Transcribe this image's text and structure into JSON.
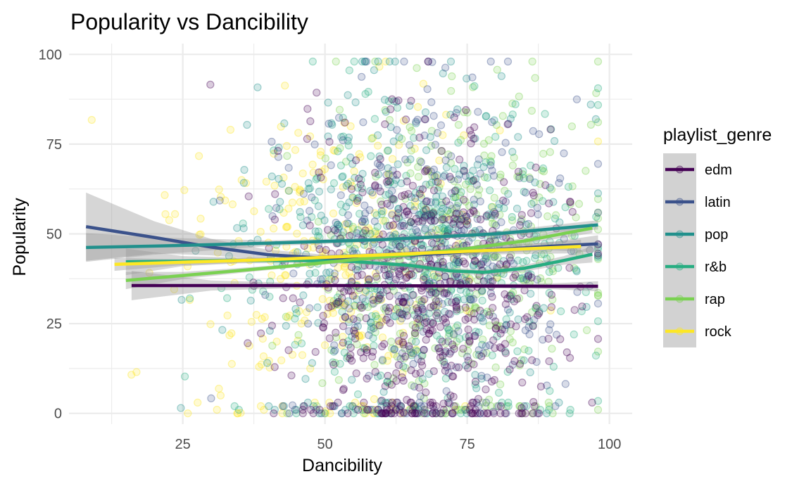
{
  "chart_data": {
    "type": "scatter",
    "title": "Popularity vs Dancibility",
    "xlabel": "Dancibility",
    "ylabel": "Popularity",
    "xlim": [
      5,
      104
    ],
    "ylim": [
      -3,
      103
    ],
    "x_ticks": [
      25,
      50,
      75,
      100
    ],
    "y_ticks": [
      0,
      25,
      50,
      75,
      100
    ],
    "grid": true,
    "legend": {
      "title": "playlist_genre",
      "placement": "right"
    },
    "series": [
      {
        "name": "edm",
        "color": "#440154",
        "trend": {
          "x": [
            16,
            30,
            50,
            70,
            90,
            98
          ],
          "y": [
            35.6,
            35.6,
            35.6,
            35.5,
            35.4,
            35.4
          ],
          "lower": [
            31.5,
            34.2,
            35.1,
            35.0,
            34.6,
            34.0
          ],
          "upper": [
            39.7,
            37.0,
            36.1,
            36.0,
            36.2,
            36.8
          ]
        }
      },
      {
        "name": "latin",
        "color": "#3B528B",
        "trend": {
          "x": [
            8,
            20,
            30,
            40,
            50,
            60,
            70,
            80,
            90,
            98
          ],
          "y": [
            52.0,
            49.0,
            46.3,
            44.2,
            43.2,
            43.6,
            44.5,
            45.6,
            46.6,
            47.2
          ],
          "lower": [
            42.5,
            44.5,
            44.0,
            42.8,
            42.2,
            42.6,
            43.5,
            44.6,
            45.4,
            44.8
          ],
          "upper": [
            61.5,
            53.5,
            48.6,
            45.6,
            44.2,
            44.6,
            45.5,
            46.6,
            47.8,
            49.6
          ]
        }
      },
      {
        "name": "pop",
        "color": "#21908C",
        "trend": {
          "x": [
            8,
            20,
            40,
            60,
            80,
            98
          ],
          "y": [
            46.2,
            46.6,
            47.4,
            48.4,
            50.0,
            52.5
          ],
          "lower": [
            42.2,
            44.2,
            46.6,
            47.8,
            49.3,
            51.2
          ],
          "upper": [
            50.2,
            49.0,
            48.2,
            49.0,
            50.7,
            53.8
          ]
        }
      },
      {
        "name": "r&b",
        "color": "#27AD81",
        "trend": {
          "x": [
            15,
            25,
            35,
            45,
            55,
            65,
            72,
            78,
            85,
            92,
            97
          ],
          "y": [
            42.2,
            42.4,
            42.6,
            42.6,
            42.3,
            41.2,
            39.7,
            39.3,
            40.4,
            42.6,
            44.3
          ],
          "lower": [
            38.5,
            41.0,
            41.8,
            41.9,
            41.6,
            40.5,
            38.9,
            38.5,
            39.5,
            41.4,
            42.0
          ],
          "upper": [
            45.9,
            43.8,
            43.4,
            43.3,
            43.0,
            41.9,
            40.5,
            40.1,
            41.3,
            43.8,
            46.6
          ]
        }
      },
      {
        "name": "rap",
        "color": "#7AD151",
        "trend": {
          "x": [
            15,
            25,
            35,
            45,
            55,
            65,
            75,
            85,
            97
          ],
          "y": [
            37.0,
            38.4,
            39.8,
            41.2,
            42.8,
            44.2,
            45.9,
            48.0,
            51.6
          ],
          "lower": [
            34.6,
            37.4,
            39.1,
            40.7,
            42.3,
            43.7,
            45.3,
            47.2,
            50.2
          ],
          "upper": [
            39.4,
            39.4,
            40.5,
            41.7,
            43.3,
            44.7,
            46.5,
            48.8,
            53.0
          ]
        }
      },
      {
        "name": "rock",
        "color": "#FDE725",
        "trend": {
          "x": [
            13,
            25,
            40,
            55,
            70,
            85,
            95
          ],
          "y": [
            41.5,
            42.1,
            42.8,
            43.8,
            44.8,
            45.8,
            46.5
          ],
          "lower": [
            39.7,
            41.3,
            42.2,
            43.2,
            44.0,
            44.4,
            44.6
          ],
          "upper": [
            43.3,
            42.9,
            43.4,
            44.4,
            45.6,
            47.2,
            48.4
          ]
        }
      }
    ]
  }
}
